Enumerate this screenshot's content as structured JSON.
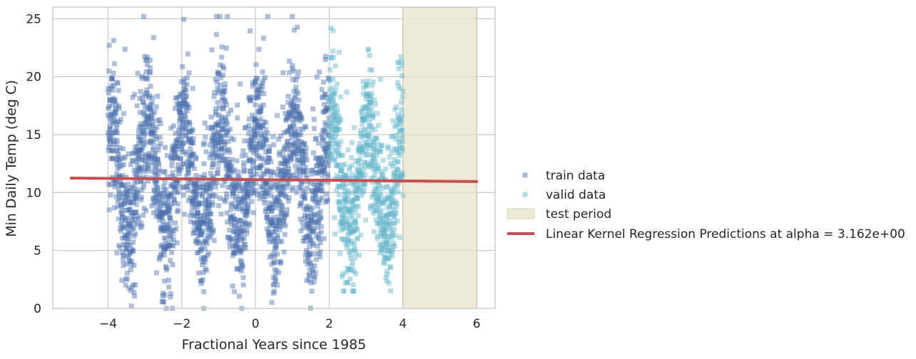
{
  "chart_data": {
    "type": "scatter",
    "title": "",
    "xlabel": "Fractional Years since 1985",
    "ylabel": "Min Daily Temp (deg C)",
    "xlim": [
      -5.5,
      6.5
    ],
    "ylim": [
      0,
      26
    ],
    "xticks": [
      -4,
      -2,
      0,
      2,
      4,
      6
    ],
    "xtick_labels": [
      "−4",
      "−2",
      "0",
      "2",
      "4",
      "6"
    ],
    "yticks": [
      0,
      5,
      10,
      15,
      20,
      25
    ],
    "ytick_labels": [
      "0",
      "5",
      "10",
      "15",
      "20",
      "25"
    ],
    "grid": true,
    "legend_position": "outside-right",
    "colors": {
      "train": "#4c72b0",
      "valid": "#64b5cd",
      "test": "#e8dfc6",
      "line": "#c44e52",
      "grid": "#cccccc",
      "frame": "#cccccc"
    },
    "series": [
      {
        "name": "train data",
        "kind": "scatter",
        "marker": "square",
        "alpha": 0.45,
        "x_range": [
          -4,
          2
        ],
        "seasonal_mean": 11.2,
        "seasonal_amplitude": 4.6,
        "peak_x": [
          -3.95,
          -2.95,
          -1.95,
          -0.95,
          0.05,
          1.05
        ],
        "trough_x": [
          -3.45,
          -2.45,
          -1.45,
          -0.45,
          0.55,
          1.55
        ],
        "y_min": 0,
        "y_max": 25.2,
        "points_per_year": 365
      },
      {
        "name": "valid data",
        "kind": "scatter",
        "marker": "square",
        "alpha": 0.45,
        "x_range": [
          2,
          4
        ],
        "seasonal_mean": 11.3,
        "seasonal_amplitude": 4.4,
        "peak_x": [
          2.05,
          3.05
        ],
        "trough_x": [
          2.55,
          3.55
        ],
        "y_min": 1.5,
        "y_max": 24.2,
        "points_per_year": 365
      },
      {
        "name": "test period",
        "kind": "span",
        "x_range": [
          4,
          6
        ]
      },
      {
        "name": "Linear Kernel Regression Predictions at alpha = 3.162e+00",
        "kind": "line",
        "x": [
          -5,
          6
        ],
        "y": [
          11.25,
          10.95
        ]
      }
    ]
  }
}
